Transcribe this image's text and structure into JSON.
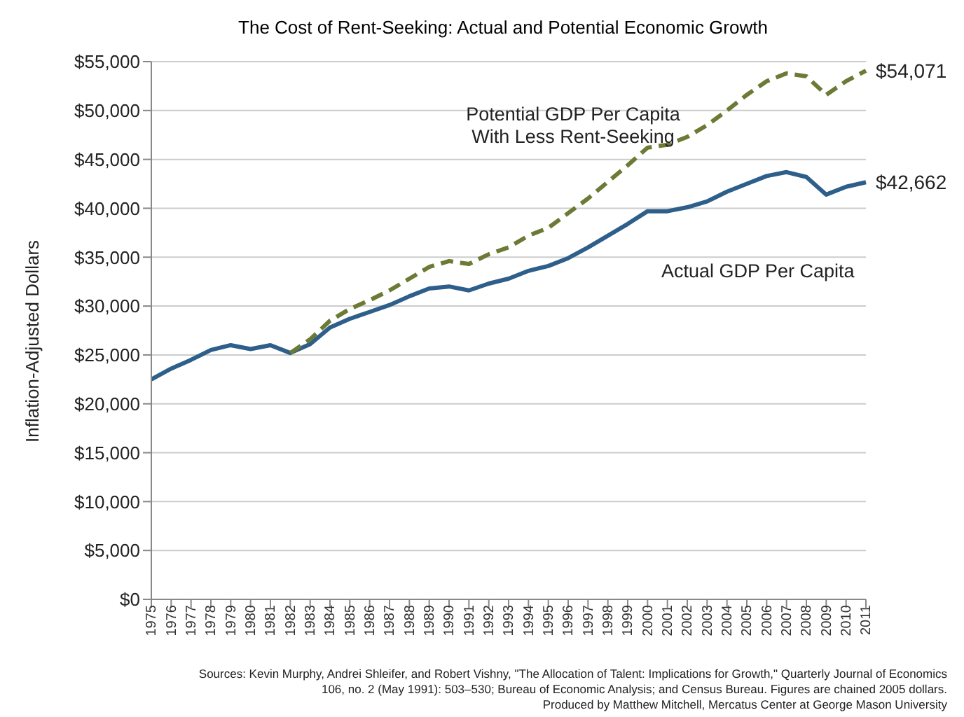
{
  "chart_data": {
    "type": "line",
    "title": "The Cost of Rent-Seeking: Actual and Potential Economic Growth",
    "ylabel": "Inflation-Adjusted Dollars",
    "categories": [
      "1975",
      "1976",
      "1977",
      "1978",
      "1979",
      "1980",
      "1981",
      "1982",
      "1983",
      "1984",
      "1985",
      "1986",
      "1987",
      "1988",
      "1989",
      "1990",
      "1991",
      "1992",
      "1993",
      "1994",
      "1995",
      "1996",
      "1997",
      "1998",
      "1999",
      "2000",
      "2001",
      "2002",
      "2003",
      "2004",
      "2005",
      "2006",
      "2007",
      "2008",
      "2009",
      "2010",
      "2011"
    ],
    "series": [
      {
        "name": "Actual GDP Per Capita",
        "color": "#2e5f8a",
        "line_style": "solid",
        "values": [
          22500,
          23600,
          24500,
          25500,
          26000,
          25600,
          26000,
          25200,
          26100,
          27800,
          28700,
          29400,
          30100,
          31000,
          31800,
          32000,
          31600,
          32300,
          32800,
          33600,
          34100,
          34900,
          36000,
          37200,
          38400,
          39700,
          39700,
          40100,
          40700,
          41700,
          42500,
          43300,
          43700,
          43200,
          41400,
          42200,
          42662
        ]
      },
      {
        "name": "Potential GDP Per Capita With Less Rent-Seeking",
        "color": "#6b7a35",
        "line_style": "dashed",
        "values": [
          null,
          null,
          null,
          null,
          null,
          null,
          null,
          25200,
          26600,
          28500,
          29700,
          30600,
          31600,
          32800,
          34000,
          34600,
          34300,
          35300,
          36000,
          37200,
          38000,
          39500,
          41000,
          42700,
          44400,
          46200,
          46500,
          47300,
          48500,
          50000,
          51600,
          53000,
          53800,
          53500,
          51600,
          53000,
          54071
        ]
      }
    ],
    "ylim": [
      0,
      55000
    ],
    "yticks": [
      {
        "value": 0,
        "label": "$0"
      },
      {
        "value": 5000,
        "label": "$5,000"
      },
      {
        "value": 10000,
        "label": "$10,000"
      },
      {
        "value": 15000,
        "label": "$15,000"
      },
      {
        "value": 20000,
        "label": "$20,000"
      },
      {
        "value": 25000,
        "label": "$25,000"
      },
      {
        "value": 30000,
        "label": "$30,000"
      },
      {
        "value": 35000,
        "label": "$35,000"
      },
      {
        "value": 40000,
        "label": "$40,000"
      },
      {
        "value": 45000,
        "label": "$45,000"
      },
      {
        "value": 50000,
        "label": "$50,000"
      },
      {
        "value": 55000,
        "label": "$55,000"
      }
    ],
    "grid": "y",
    "legend": false,
    "marker": "none",
    "annotations": [
      {
        "text": "$54,071",
        "x": "2011",
        "y": 54071
      },
      {
        "text": "$42,662",
        "x": "2011",
        "y": 42662
      },
      "Sources: Kevin Murphy, Andrei Shleifer, and Robert Vishny, \"The Allocation of Talent: Implications for Growth,\" Quarterly Journal of Economics",
      "106, no. 2 (May 1991): 503–530; Bureau of Economic Analysis; and Census Bureau. Figures are chained 2005 dollars.",
      "Produced by Matthew Mitchell, Mercatus Center at George Mason University"
    ]
  }
}
